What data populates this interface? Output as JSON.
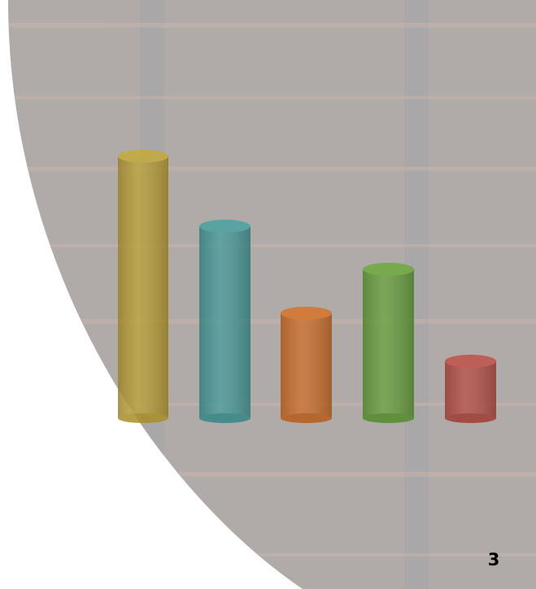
{
  "page_number": "3"
}
